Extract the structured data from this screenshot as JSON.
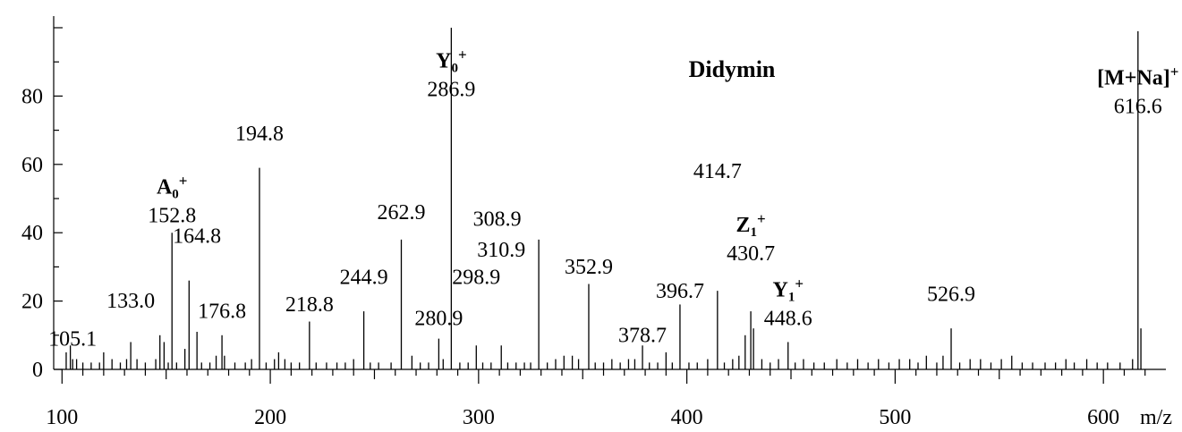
{
  "chart_data": {
    "type": "bar",
    "title": "Didymin",
    "xlabel": "m/z",
    "ylabel": "",
    "xlim": [
      96,
      630
    ],
    "ylim": [
      0,
      100
    ],
    "xticks": [
      100,
      200,
      300,
      400,
      500,
      600
    ],
    "yticks": [
      0,
      20,
      40,
      60,
      80
    ],
    "peaks": [
      {
        "x": 102,
        "y": 5
      },
      {
        "x": 104,
        "y": 7
      },
      {
        "x": 105.1,
        "y": 3
      },
      {
        "x": 107,
        "y": 3
      },
      {
        "x": 110,
        "y": 2
      },
      {
        "x": 114,
        "y": 2
      },
      {
        "x": 118,
        "y": 2
      },
      {
        "x": 120,
        "y": 5
      },
      {
        "x": 124,
        "y": 3
      },
      {
        "x": 128,
        "y": 2
      },
      {
        "x": 131,
        "y": 3
      },
      {
        "x": 133.0,
        "y": 8
      },
      {
        "x": 136,
        "y": 3
      },
      {
        "x": 140,
        "y": 2
      },
      {
        "x": 145,
        "y": 3
      },
      {
        "x": 147,
        "y": 10
      },
      {
        "x": 149,
        "y": 8
      },
      {
        "x": 151,
        "y": 2
      },
      {
        "x": 152.8,
        "y": 40
      },
      {
        "x": 155,
        "y": 2
      },
      {
        "x": 159,
        "y": 6
      },
      {
        "x": 161,
        "y": 26
      },
      {
        "x": 164.8,
        "y": 11
      },
      {
        "x": 167,
        "y": 2
      },
      {
        "x": 171,
        "y": 2
      },
      {
        "x": 174,
        "y": 4
      },
      {
        "x": 176.8,
        "y": 10
      },
      {
        "x": 178,
        "y": 4
      },
      {
        "x": 183,
        "y": 2
      },
      {
        "x": 188,
        "y": 2
      },
      {
        "x": 191,
        "y": 3
      },
      {
        "x": 194.8,
        "y": 59
      },
      {
        "x": 198,
        "y": 2
      },
      {
        "x": 202,
        "y": 3
      },
      {
        "x": 204,
        "y": 5
      },
      {
        "x": 207,
        "y": 3
      },
      {
        "x": 210,
        "y": 2
      },
      {
        "x": 214,
        "y": 2
      },
      {
        "x": 218.8,
        "y": 14
      },
      {
        "x": 222,
        "y": 2
      },
      {
        "x": 227,
        "y": 2
      },
      {
        "x": 232,
        "y": 2
      },
      {
        "x": 236,
        "y": 2
      },
      {
        "x": 240,
        "y": 3
      },
      {
        "x": 244.9,
        "y": 17
      },
      {
        "x": 248,
        "y": 2
      },
      {
        "x": 252,
        "y": 2
      },
      {
        "x": 258,
        "y": 2
      },
      {
        "x": 262.9,
        "y": 38
      },
      {
        "x": 268,
        "y": 4
      },
      {
        "x": 272,
        "y": 2
      },
      {
        "x": 276,
        "y": 2
      },
      {
        "x": 280.9,
        "y": 9
      },
      {
        "x": 283,
        "y": 3
      },
      {
        "x": 286.9,
        "y": 100
      },
      {
        "x": 291,
        "y": 2
      },
      {
        "x": 295,
        "y": 2
      },
      {
        "x": 298.9,
        "y": 7
      },
      {
        "x": 302,
        "y": 2
      },
      {
        "x": 306,
        "y": 2
      },
      {
        "x": 310.9,
        "y": 7
      },
      {
        "x": 314,
        "y": 2
      },
      {
        "x": 318,
        "y": 2
      },
      {
        "x": 322,
        "y": 2
      },
      {
        "x": 325,
        "y": 2
      },
      {
        "x": 328.9,
        "y": 38
      },
      {
        "x": 333,
        "y": 2
      },
      {
        "x": 337,
        "y": 3
      },
      {
        "x": 341,
        "y": 4
      },
      {
        "x": 345,
        "y": 4
      },
      {
        "x": 348,
        "y": 3
      },
      {
        "x": 352.9,
        "y": 25
      },
      {
        "x": 356,
        "y": 2
      },
      {
        "x": 360,
        "y": 2
      },
      {
        "x": 364,
        "y": 3
      },
      {
        "x": 368,
        "y": 2
      },
      {
        "x": 372,
        "y": 3
      },
      {
        "x": 375,
        "y": 3
      },
      {
        "x": 378.7,
        "y": 7
      },
      {
        "x": 382,
        "y": 2
      },
      {
        "x": 386,
        "y": 2
      },
      {
        "x": 390,
        "y": 5
      },
      {
        "x": 393,
        "y": 2
      },
      {
        "x": 396.7,
        "y": 19
      },
      {
        "x": 401,
        "y": 2
      },
      {
        "x": 405,
        "y": 2
      },
      {
        "x": 410,
        "y": 3
      },
      {
        "x": 414.7,
        "y": 23
      },
      {
        "x": 418,
        "y": 2
      },
      {
        "x": 422,
        "y": 3
      },
      {
        "x": 425,
        "y": 4
      },
      {
        "x": 428,
        "y": 10
      },
      {
        "x": 430.7,
        "y": 17
      },
      {
        "x": 432,
        "y": 12
      },
      {
        "x": 436,
        "y": 3
      },
      {
        "x": 440,
        "y": 2
      },
      {
        "x": 444,
        "y": 3
      },
      {
        "x": 448.6,
        "y": 8
      },
      {
        "x": 452,
        "y": 2
      },
      {
        "x": 456,
        "y": 3
      },
      {
        "x": 461,
        "y": 2
      },
      {
        "x": 466,
        "y": 2
      },
      {
        "x": 472,
        "y": 3
      },
      {
        "x": 477,
        "y": 2
      },
      {
        "x": 482,
        "y": 3
      },
      {
        "x": 487,
        "y": 2
      },
      {
        "x": 492,
        "y": 3
      },
      {
        "x": 497,
        "y": 2
      },
      {
        "x": 502,
        "y": 3
      },
      {
        "x": 507,
        "y": 3
      },
      {
        "x": 511,
        "y": 2
      },
      {
        "x": 515,
        "y": 4
      },
      {
        "x": 520,
        "y": 2
      },
      {
        "x": 523,
        "y": 4
      },
      {
        "x": 526.9,
        "y": 12
      },
      {
        "x": 531,
        "y": 2
      },
      {
        "x": 536,
        "y": 3
      },
      {
        "x": 541,
        "y": 3
      },
      {
        "x": 546,
        "y": 2
      },
      {
        "x": 551,
        "y": 3
      },
      {
        "x": 556,
        "y": 4
      },
      {
        "x": 561,
        "y": 2
      },
      {
        "x": 566,
        "y": 2
      },
      {
        "x": 572,
        "y": 2
      },
      {
        "x": 577,
        "y": 2
      },
      {
        "x": 582,
        "y": 3
      },
      {
        "x": 586,
        "y": 2
      },
      {
        "x": 592,
        "y": 3
      },
      {
        "x": 597,
        "y": 2
      },
      {
        "x": 602,
        "y": 2
      },
      {
        "x": 608,
        "y": 2
      },
      {
        "x": 614,
        "y": 3
      },
      {
        "x": 616.6,
        "y": 99
      },
      {
        "x": 618,
        "y": 12
      }
    ],
    "annotations": [
      {
        "text": "105.1",
        "x": 105.1,
        "y": 7,
        "ion": ""
      },
      {
        "text": "133.0",
        "x": 133.0,
        "y": 18,
        "ion": ""
      },
      {
        "text": "152.8",
        "x": 152.8,
        "y": 43,
        "ion": "A0+"
      },
      {
        "text": "164.8",
        "x": 164.8,
        "y": 37,
        "ion": ""
      },
      {
        "text": "176.8",
        "x": 176.8,
        "y": 15,
        "ion": ""
      },
      {
        "text": "194.8",
        "x": 194.8,
        "y": 67,
        "ion": ""
      },
      {
        "text": "218.8",
        "x": 218.8,
        "y": 17,
        "ion": ""
      },
      {
        "text": "244.9",
        "x": 244.9,
        "y": 25,
        "ion": ""
      },
      {
        "text": "262.9",
        "x": 262.9,
        "y": 44,
        "ion": ""
      },
      {
        "text": "280.9",
        "x": 280.9,
        "y": 13,
        "ion": ""
      },
      {
        "text": "286.9",
        "x": 286.9,
        "y": 80,
        "ion": "Y0+"
      },
      {
        "text": "310.9",
        "x": 310.9,
        "y": 33,
        "ion": ""
      },
      {
        "text": "298.9",
        "x": 298.9,
        "y": 25,
        "ion": ""
      },
      {
        "text": "308.9",
        "x": 308.9,
        "y": 42,
        "ion": ""
      },
      {
        "text": "352.9",
        "x": 352.9,
        "y": 28,
        "ion": ""
      },
      {
        "text": "378.7",
        "x": 378.7,
        "y": 8,
        "ion": ""
      },
      {
        "text": "396.7",
        "x": 396.7,
        "y": 21,
        "ion": ""
      },
      {
        "text": "414.7",
        "x": 414.7,
        "y": 56,
        "ion": ""
      },
      {
        "text": "430.7",
        "x": 430.7,
        "y": 32,
        "ion": "Z1+"
      },
      {
        "text": "448.6",
        "x": 448.6,
        "y": 13,
        "ion": "Y1+"
      },
      {
        "text": "526.9",
        "x": 526.9,
        "y": 20,
        "ion": ""
      },
      {
        "text": "616.6",
        "x": 616.6,
        "y": 75,
        "ion": "[M+Na]+"
      }
    ],
    "ion_labels": {
      "A0+": {
        "main": "A",
        "sub": "0",
        "sup": "+"
      },
      "Y0+": {
        "main": "Y",
        "sub": "0",
        "sup": "+"
      },
      "Z1+": {
        "main": "Z",
        "sub": "1",
        "sup": "+"
      },
      "Y1+": {
        "main": "Y",
        "sub": "1",
        "sup": "+"
      },
      "[M+Na]+": {
        "main": "[M+Na]",
        "sub": "",
        "sup": "+"
      }
    },
    "grid": false,
    "legend": "none"
  }
}
